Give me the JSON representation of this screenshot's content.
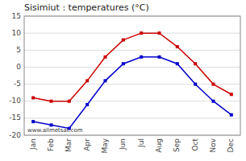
{
  "chart_data": {
    "type": "line",
    "title": "Sisimiut : temperatures (°C)",
    "categories": [
      "Jan",
      "Feb",
      "Mar",
      "Apr",
      "May",
      "Jun",
      "Jul",
      "Aug",
      "Sep",
      "Oct",
      "Nov",
      "Dec"
    ],
    "series": [
      {
        "color": "#cc0000",
        "marker": "square",
        "line_style": "solid",
        "values": [
          -9,
          -10,
          -10,
          -4,
          3,
          8,
          10,
          10,
          6,
          1,
          -5,
          -8
        ]
      },
      {
        "color": "#0000cc",
        "marker": "square",
        "line_style": "solid",
        "values": [
          -16,
          -17,
          -18,
          -11,
          -4,
          1,
          3,
          3,
          1,
          -5,
          -10,
          -14
        ]
      }
    ],
    "ylim": [
      -20,
      15
    ],
    "yticks": [
      -20,
      -15,
      -10,
      -5,
      0,
      5,
      10,
      15
    ],
    "grid": true,
    "annotation": "www.allmetsat.com"
  }
}
